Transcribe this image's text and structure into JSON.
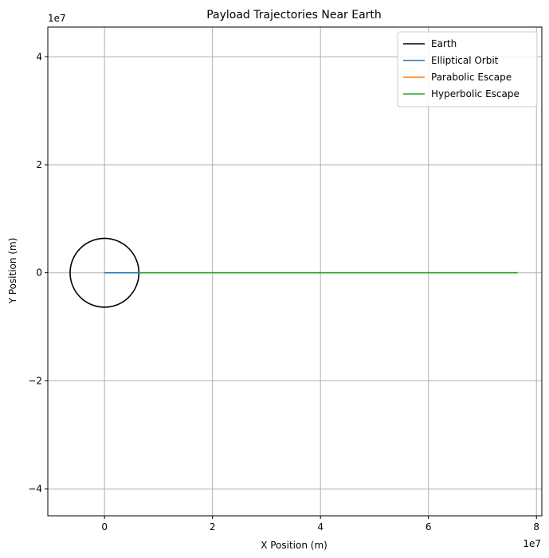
{
  "chart_data": {
    "type": "line",
    "title": "Payload Trajectories Near Earth",
    "xlabel": "X Position (m)",
    "ylabel": "Y Position (m)",
    "x_offset_label": "1e7",
    "y_offset_label": "1e7",
    "xlim": [
      -10500000.0,
      81000000.0
    ],
    "ylim": [
      -45000000.0,
      45500000.0
    ],
    "xticks": [
      0,
      20000000.0,
      40000000.0,
      60000000.0,
      80000000.0
    ],
    "xtick_labels": [
      "0",
      "2",
      "4",
      "6",
      "8"
    ],
    "yticks": [
      -40000000.0,
      -20000000.0,
      0,
      20000000.0,
      40000000.0
    ],
    "ytick_labels": [
      "−4",
      "−2",
      "0",
      "2",
      "4"
    ],
    "grid": true,
    "legend_position": "top-right",
    "earth": {
      "name": "Earth",
      "type": "circle",
      "center": [
        0,
        0
      ],
      "radius": 6371000.0,
      "color": "#000000"
    },
    "series": [
      {
        "name": "Elliptical Orbit",
        "color": "#1f77b4",
        "x": [
          0,
          6400000.0
        ],
        "y": [
          0,
          0
        ]
      },
      {
        "name": "Parabolic Escape",
        "color": "#ff7f0e",
        "x": [
          6400000.0,
          76500000.0
        ],
        "y": [
          0,
          0
        ]
      },
      {
        "name": "Hyperbolic Escape",
        "color": "#2ca02c",
        "x": [
          6400000.0,
          76500000.0
        ],
        "y": [
          0,
          0
        ]
      }
    ]
  }
}
